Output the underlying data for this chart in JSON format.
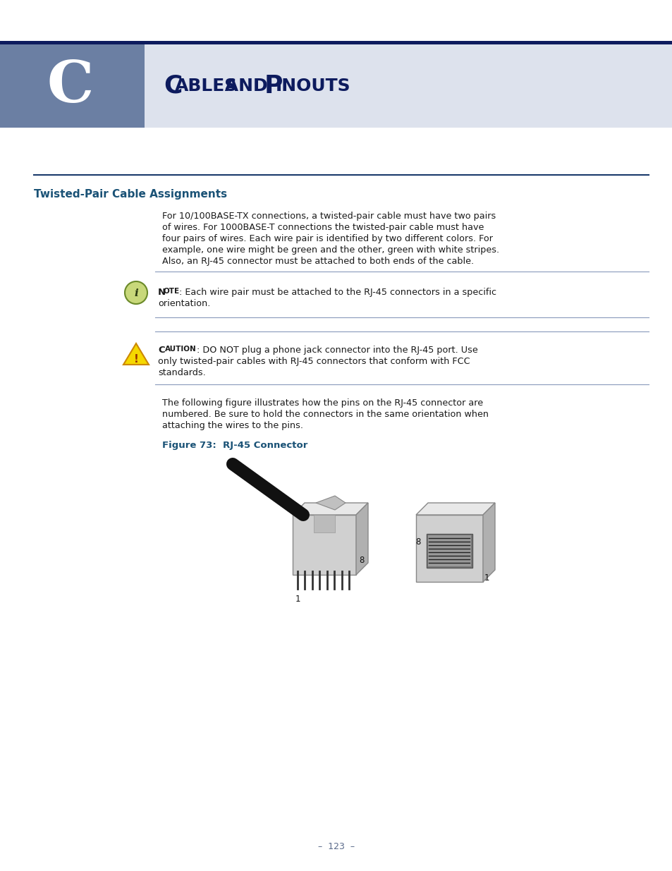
{
  "page_bg": "#ffffff",
  "header_bar_color": "#6b7fa3",
  "header_top_line_color": "#0d1b5e",
  "header_letter": "C",
  "header_letter_color": "#ffffff",
  "header_title": "Cables and Pinouts",
  "header_title_color": "#0d1b5e",
  "header_light_bg": "#dde2ed",
  "section_title": "Twisted-Pair Cable Assignments",
  "section_title_color": "#1a5276",
  "section_line_color": "#1a3a6c",
  "body_text_color": "#1a1a1a",
  "body_paragraph_lines": [
    "For 10/100BASE-TX connections, a twisted-pair cable must have two pairs",
    "of wires. For 1000BASE-T connections the twisted-pair cable must have",
    "four pairs of wires. Each wire pair is identified by two different colors. For",
    "example, one wire might be green and the other, green with white stripes.",
    "Also, an RJ-45 connector must be attached to both ends of the cable."
  ],
  "note_text_rest": " Each wire pair must be attached to the RJ-45 connectors in a specific",
  "note_text_line2": "orientation.",
  "caution_text_rest": " DO NOT plug a phone jack connector into the RJ-45 port. Use",
  "caution_text_line2": "only twisted-pair cables with RJ-45 connectors that conform with FCC",
  "caution_text_line3": "standards.",
  "following_lines": [
    "The following figure illustrates how the pins on the RJ-45 connector are",
    "numbered. Be sure to hold the connectors in the same orientation when",
    "attaching the wires to the pins."
  ],
  "figure_label": "Figure 73:  RJ-45 Connector",
  "figure_label_color": "#1a5276",
  "page_number": "–  123  –",
  "page_number_color": "#5a6a8a",
  "divider_color": "#8899bb",
  "note_icon_bg": "#c8d87a",
  "note_icon_border": "#6b8a2a"
}
